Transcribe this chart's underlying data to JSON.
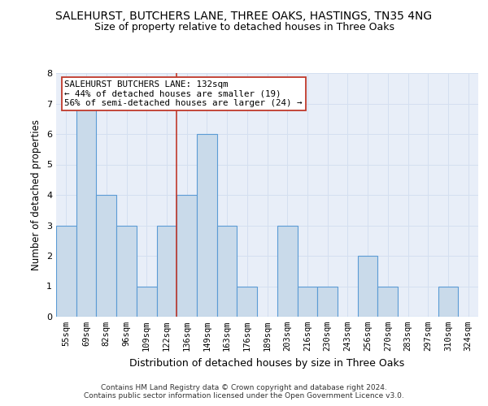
{
  "title": "SALEHURST, BUTCHERS LANE, THREE OAKS, HASTINGS, TN35 4NG",
  "subtitle": "Size of property relative to detached houses in Three Oaks",
  "xlabel": "Distribution of detached houses by size in Three Oaks",
  "ylabel": "Number of detached properties",
  "categories": [
    "55sqm",
    "69sqm",
    "82sqm",
    "96sqm",
    "109sqm",
    "122sqm",
    "136sqm",
    "149sqm",
    "163sqm",
    "176sqm",
    "189sqm",
    "203sqm",
    "216sqm",
    "230sqm",
    "243sqm",
    "256sqm",
    "270sqm",
    "283sqm",
    "297sqm",
    "310sqm",
    "324sqm"
  ],
  "values": [
    3,
    7,
    4,
    3,
    1,
    3,
    4,
    6,
    3,
    1,
    0,
    3,
    1,
    1,
    0,
    2,
    1,
    0,
    0,
    1,
    0
  ],
  "bar_color": "#c9daea",
  "bar_edge_color": "#5b9bd5",
  "bar_linewidth": 0.8,
  "vline_x_index": 6,
  "vline_color": "#c0392b",
  "vline_linewidth": 1.2,
  "annotation_box_text": "SALEHURST BUTCHERS LANE: 132sqm\n← 44% of detached houses are smaller (19)\n56% of semi-detached houses are larger (24) →",
  "annotation_box_color": "#c0392b",
  "ylim_max": 8,
  "yticks": [
    0,
    1,
    2,
    3,
    4,
    5,
    6,
    7,
    8
  ],
  "grid_color": "#d4dff0",
  "background_color": "#e8eef8",
  "title_fontsize": 10,
  "subtitle_fontsize": 9,
  "xlabel_fontsize": 9,
  "ylabel_fontsize": 8.5,
  "tick_fontsize": 7.5,
  "annotation_fontsize": 7.8,
  "footer_text": "Contains HM Land Registry data © Crown copyright and database right 2024.\nContains public sector information licensed under the Open Government Licence v3.0.",
  "footer_fontsize": 6.5
}
